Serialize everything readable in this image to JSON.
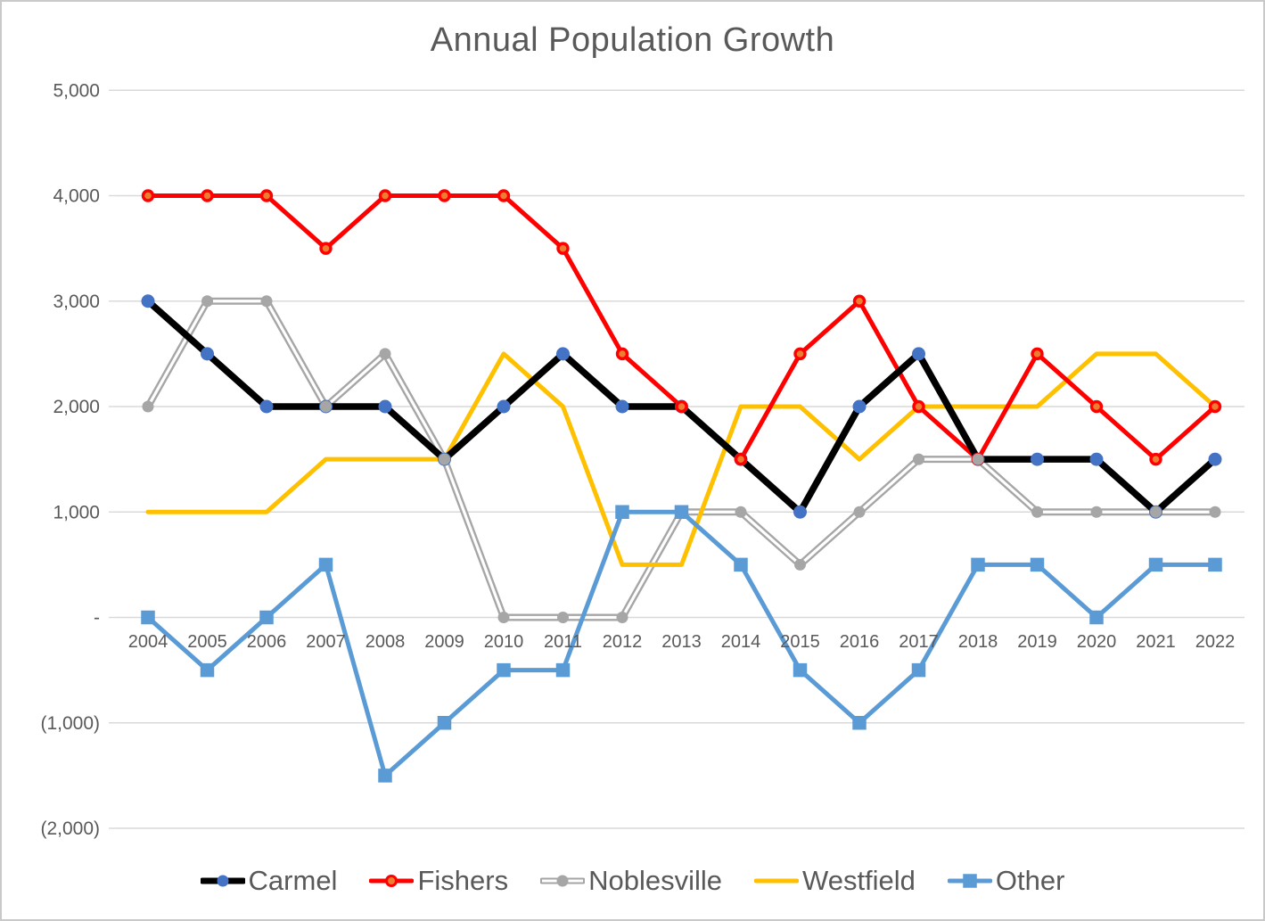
{
  "title": "Annual Population Growth",
  "chart_data": {
    "type": "line",
    "title": "Annual Population Growth",
    "categories": [
      "2004",
      "2005",
      "2006",
      "2007",
      "2008",
      "2009",
      "2010",
      "2011",
      "2012",
      "2013",
      "2014",
      "2015",
      "2016",
      "2017",
      "2018",
      "2019",
      "2020",
      "2021",
      "2022"
    ],
    "series": [
      {
        "name": "Carmel",
        "color": "#000000",
        "line_width": 7.5,
        "marker": {
          "shape": "circle",
          "fill": "#4472C4",
          "size": 15
        },
        "values": [
          3000,
          2500,
          2000,
          2000,
          2000,
          1500,
          2000,
          2500,
          2000,
          2000,
          1500,
          1000,
          2000,
          2500,
          1500,
          1500,
          1500,
          1000,
          1500
        ]
      },
      {
        "name": "Fishers",
        "color": "#FF0000",
        "line_width": 5,
        "marker": {
          "shape": "circle",
          "fill": "#ED7D31",
          "stroke": "#FF0000",
          "size": 14
        },
        "values": [
          4000,
          4000,
          4000,
          3500,
          4000,
          4000,
          4000,
          3500,
          2500,
          2000,
          1500,
          2500,
          3000,
          2000,
          1500,
          2500,
          2000,
          1500,
          2000
        ]
      },
      {
        "name": "Noblesville",
        "color": "#A6A6A6",
        "line_width": 8,
        "line_style": "double",
        "inner_color": "#FFFFFF",
        "marker": {
          "shape": "circle",
          "fill": "#A6A6A6",
          "size": 13
        },
        "values": [
          2000,
          3000,
          3000,
          2000,
          2500,
          1500,
          0,
          0,
          0,
          1000,
          1000,
          500,
          1000,
          1500,
          1500,
          1000,
          1000,
          1000,
          1000
        ]
      },
      {
        "name": "Westfield",
        "color": "#FFC000",
        "line_width": 5,
        "marker": {
          "shape": "none"
        },
        "values": [
          1000,
          1000,
          1000,
          1500,
          1500,
          1500,
          2500,
          2000,
          500,
          500,
          2000,
          2000,
          1500,
          2000,
          2000,
          2000,
          2500,
          2500,
          2000
        ]
      },
      {
        "name": "Other",
        "color": "#5B9BD5",
        "line_width": 5,
        "marker": {
          "shape": "square",
          "fill": "#5B9BD5",
          "size": 15.5
        },
        "values": [
          0,
          -500,
          0,
          500,
          -1500,
          -1000,
          -500,
          -500,
          1000,
          1000,
          500,
          -500,
          -1000,
          -500,
          500,
          500,
          0,
          500,
          500
        ]
      }
    ],
    "y_axis": {
      "min": -2000,
      "max": 5000,
      "tick_interval": 1000,
      "ticks": [
        {
          "value": 5000,
          "label": "5,000"
        },
        {
          "value": 4000,
          "label": "4,000"
        },
        {
          "value": 3000,
          "label": "3,000"
        },
        {
          "value": 2000,
          "label": "2,000"
        },
        {
          "value": 1000,
          "label": "1,000"
        },
        {
          "value": 0,
          "label": "-"
        },
        {
          "value": -1000,
          "label": "(1,000)"
        },
        {
          "value": -2000,
          "label": "(2,000)"
        }
      ]
    },
    "grid": true,
    "legend_position": "bottom",
    "colors": {
      "text": "#595959",
      "gridline": "#D9D9D9",
      "background": "#FFFFFF",
      "border": "#C9C9C9"
    },
    "line_z_order": [
      "Noblesville",
      "Westfield",
      "Other",
      "Fishers",
      "Carmel"
    ],
    "marker_z_order": [
      "Carmel",
      "Fishers",
      "Noblesville",
      "Other"
    ]
  }
}
